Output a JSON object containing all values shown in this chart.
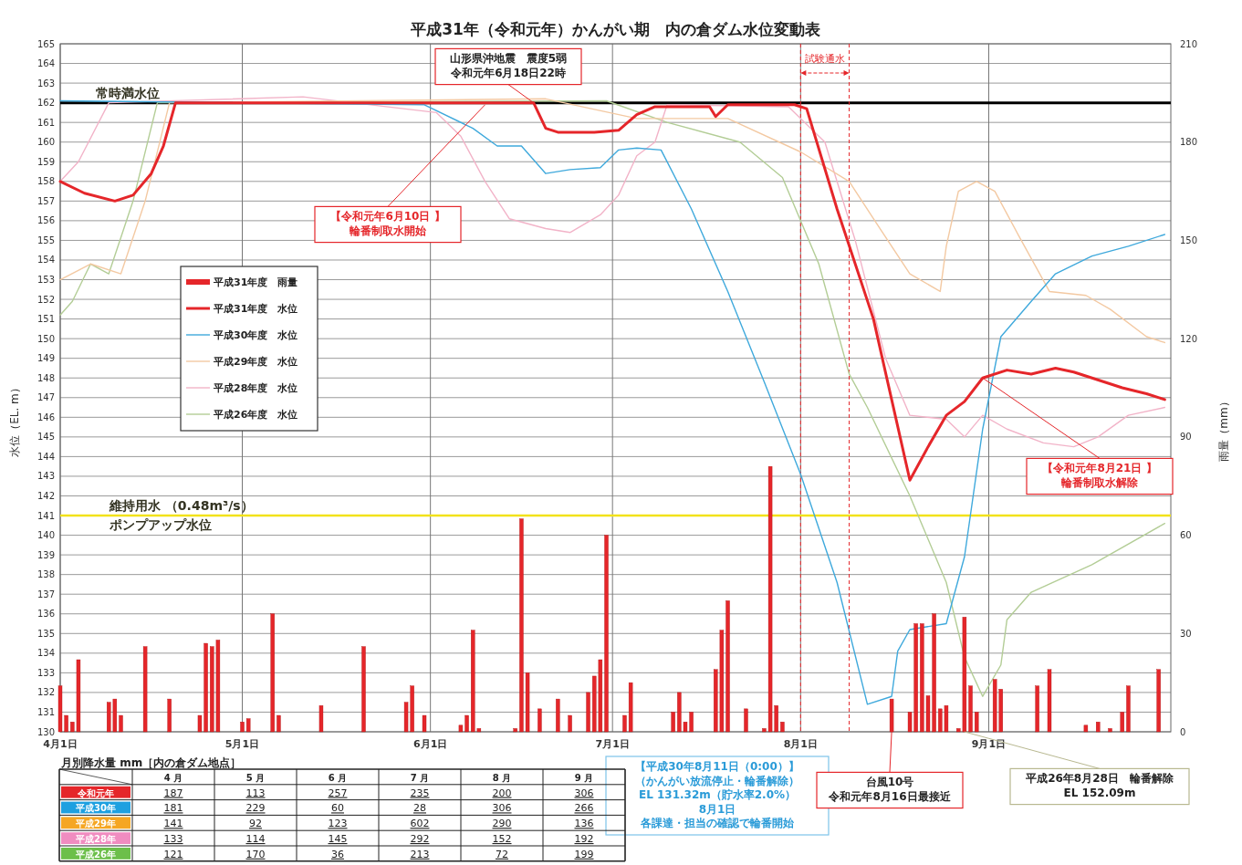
{
  "chart_data": [
    {
      "type": "line",
      "title": "平成31年（令和元年）かんがい期　内の倉ダム水位変動表",
      "ylabel": "水位（EL. m）",
      "y2label": "雨量（mm）",
      "xlim": [
        "--04-01",
        "--10-01"
      ],
      "xticks": [
        {
          "value": "--04-01",
          "label": "4月1日"
        },
        {
          "value": "--05-01",
          "label": "5月1日"
        },
        {
          "value": "--06-01",
          "label": "6月1日"
        },
        {
          "value": "--07-01",
          "label": "7月1日"
        },
        {
          "value": "--08-01",
          "label": "8月1日"
        },
        {
          "value": "--09-01",
          "label": "9月1日"
        }
      ],
      "ylim": [
        130,
        165
      ],
      "yticks": [
        130,
        131,
        132,
        133,
        134,
        135,
        136,
        137,
        138,
        139,
        140,
        141,
        142,
        143,
        144,
        145,
        146,
        147,
        148,
        149,
        150,
        151,
        152,
        153,
        154,
        155,
        156,
        157,
        158,
        159,
        160,
        161,
        162,
        163,
        164,
        165
      ],
      "y2lim": [
        0,
        210
      ],
      "y2ticks": [
        0,
        30,
        60,
        90,
        120,
        150,
        180,
        210
      ],
      "grid": true,
      "legend": "left",
      "series": [
        {
          "name": "平成31年度　雨量",
          "type": "bar",
          "axis": "y2",
          "color": "#e5262a",
          "x": [
            "--04-01",
            "--04-02",
            "--04-03",
            "--04-04",
            "--04-09",
            "--04-10",
            "--04-11",
            "--04-15",
            "--04-19",
            "--04-24",
            "--04-25",
            "--04-26",
            "--04-27",
            "--05-01",
            "--05-02",
            "--05-06",
            "--05-07",
            "--05-14",
            "--05-21",
            "--05-28",
            "--05-29",
            "--05-31",
            "--06-06",
            "--06-07",
            "--06-08",
            "--06-09",
            "--06-15",
            "--06-16",
            "--06-17",
            "--06-19",
            "--06-22",
            "--06-24",
            "--06-27",
            "--06-28",
            "--06-29",
            "--06-30",
            "--07-03",
            "--07-04",
            "--07-11",
            "--07-12",
            "--07-13",
            "--07-14",
            "--07-18",
            "--07-19",
            "--07-20",
            "--07-23",
            "--07-26",
            "--07-27",
            "--07-28",
            "--07-29",
            "--08-16",
            "--08-19",
            "--08-20",
            "--08-21",
            "--08-22",
            "--08-23",
            "--08-24",
            "--08-25",
            "--08-27",
            "--08-28",
            "--08-29",
            "--08-30",
            "--09-02",
            "--09-03",
            "--09-09",
            "--09-11",
            "--09-17",
            "--09-19",
            "--09-21",
            "--09-23",
            "--09-24",
            "--09-29"
          ],
          "values": [
            14,
            5,
            3,
            22,
            9,
            10,
            5,
            26,
            10,
            5,
            27,
            26,
            28,
            3,
            4,
            36,
            5,
            8,
            26,
            9,
            14,
            5,
            2,
            5,
            31,
            1,
            1,
            65,
            18,
            7,
            10,
            5,
            12,
            17,
            22,
            60,
            5,
            15,
            6,
            12,
            3,
            6,
            19,
            31,
            40,
            7,
            1,
            81,
            8,
            3,
            10,
            6,
            33,
            33,
            11,
            36,
            7,
            8,
            1,
            35,
            14,
            6,
            16,
            13,
            14,
            19,
            2,
            3,
            1,
            6,
            14,
            19
          ]
        },
        {
          "name": "平成31年度　水位",
          "type": "line",
          "color": "#e5262a",
          "x": [
            "--04-01",
            "--04-05",
            "--04-10",
            "--04-13",
            "--04-16",
            "--04-18",
            "--04-20",
            "--06-18",
            "--06-20",
            "--06-22",
            "--06-28",
            "--07-02",
            "--07-05",
            "--07-08",
            "--07-17",
            "--07-18",
            "--07-20",
            "--07-31",
            "--08-02",
            "--08-07",
            "--08-13",
            "--08-19",
            "--08-22",
            "--08-25",
            "--08-28",
            "--08-31",
            "--09-04",
            "--09-08",
            "--09-12",
            "--09-15",
            "--09-23",
            "--09-27",
            "--09-30"
          ],
          "values": [
            158.0,
            157.4,
            157.0,
            157.3,
            158.4,
            159.8,
            162.0,
            162.0,
            160.7,
            160.5,
            160.5,
            160.6,
            161.4,
            161.8,
            161.8,
            161.3,
            161.9,
            161.9,
            161.7,
            156.6,
            151.0,
            142.8,
            144.5,
            146.1,
            146.8,
            148.0,
            148.4,
            148.2,
            148.5,
            148.3,
            147.5,
            147.2,
            146.9
          ]
        },
        {
          "name": "平成30年度　水位",
          "type": "line",
          "color": "#3fa9dc",
          "x": [
            "--04-01",
            "--05-31",
            "--06-08",
            "--06-12",
            "--06-16",
            "--06-20",
            "--06-24",
            "--06-29",
            "--07-02",
            "--07-05",
            "--07-09",
            "--07-14",
            "--07-20",
            "--07-26",
            "--08-01",
            "--08-07",
            "--08-12",
            "--08-16",
            "--08-17",
            "--08-19",
            "--08-25",
            "--08-28",
            "--08-31",
            "--09-03",
            "--09-08",
            "--09-12",
            "--09-18",
            "--09-24",
            "--09-30"
          ],
          "values": [
            162.1,
            161.9,
            160.7,
            159.8,
            159.8,
            158.4,
            158.6,
            158.7,
            159.6,
            159.7,
            159.6,
            156.6,
            152.4,
            147.8,
            143.1,
            137.6,
            131.4,
            131.8,
            134.1,
            135.2,
            135.5,
            138.9,
            145.4,
            150.1,
            151.9,
            153.3,
            154.2,
            154.7,
            155.3
          ]
        },
        {
          "name": "平成29年度　水位",
          "type": "line",
          "color": "#f3c9a2",
          "x": [
            "--04-01",
            "--04-06",
            "--04-11",
            "--04-15",
            "--04-19",
            "--06-20",
            "--07-05",
            "--07-20",
            "--08-01",
            "--08-09",
            "--08-13",
            "--08-19",
            "--08-24",
            "--08-25",
            "--08-27",
            "--08-30",
            "--09-02",
            "--09-06",
            "--09-11",
            "--09-17",
            "--09-21",
            "--09-27",
            "--09-30"
          ],
          "values": [
            153.0,
            153.8,
            153.3,
            157.0,
            162.0,
            162.2,
            161.2,
            161.2,
            159.5,
            158.0,
            156.1,
            153.3,
            152.4,
            154.7,
            157.5,
            158.0,
            157.5,
            155.2,
            152.4,
            152.2,
            151.5,
            150.1,
            149.8
          ]
        },
        {
          "name": "平成28年度　水位",
          "type": "line",
          "color": "#f2b3c8",
          "x": [
            "--04-01",
            "--04-04",
            "--04-09",
            "--05-11",
            "--06-02",
            "--06-06",
            "--06-10",
            "--06-14",
            "--06-20",
            "--06-24",
            "--06-29",
            "--07-02",
            "--07-05",
            "--07-08",
            "--07-10",
            "--07-30",
            "--08-05",
            "--08-10",
            "--08-15",
            "--08-19",
            "--08-25",
            "--08-28",
            "--08-31",
            "--09-04",
            "--09-10",
            "--09-15",
            "--09-19",
            "--09-24",
            "--09-30"
          ],
          "values": [
            158.0,
            159.0,
            162.0,
            162.3,
            161.5,
            160.3,
            158.0,
            156.1,
            155.6,
            155.4,
            156.3,
            157.3,
            159.3,
            160.0,
            161.9,
            161.8,
            160.0,
            155.0,
            149.0,
            146.1,
            145.9,
            145.0,
            146.1,
            145.4,
            144.7,
            144.5,
            145.0,
            146.1,
            146.5
          ]
        },
        {
          "name": "平成26年度　水位",
          "type": "line",
          "color": "#b3cd96",
          "x": [
            "--04-01",
            "--04-03",
            "--04-06",
            "--04-09",
            "--04-13",
            "--04-17",
            "--06-30",
            "--07-10",
            "--07-22",
            "--07-29",
            "--08-04",
            "--08-09",
            "--08-12",
            "--08-19",
            "--08-25",
            "--08-28",
            "--08-31",
            "--09-03",
            "--09-04",
            "--09-08",
            "--09-18",
            "--09-30"
          ],
          "values": [
            151.2,
            151.9,
            153.8,
            153.3,
            157.0,
            162.0,
            162.1,
            161.0,
            160.0,
            158.2,
            153.8,
            148.2,
            146.5,
            142.0,
            137.6,
            133.8,
            131.8,
            133.4,
            135.7,
            137.1,
            138.5,
            140.6
          ]
        }
      ],
      "ref_lines": [
        {
          "axis": "y",
          "value": 162,
          "label": "常時満水位",
          "color": "#000000"
        },
        {
          "axis": "y",
          "value": 141,
          "label": "維持用水 （0.48m³/s）ポンプアップ水位",
          "color": "#f2e21a"
        },
        {
          "axis": "x",
          "value": "--08-01",
          "label": "試験通水",
          "color": "#e5262a",
          "line_style": "dashed"
        },
        {
          "axis": "x",
          "value": "--08-09",
          "color": "#e5262a",
          "line_style": "dashed"
        }
      ],
      "annotations": [
        {
          "text": "山形県沖地震　震度5弱令和元年6月18日22時",
          "x": "--06-18",
          "y": 162.0
        },
        {
          "text": "【令和元年6月10日 】輪番制取水開始",
          "x": "--06-10",
          "y": 161.9
        },
        {
          "text": "【令和元年8月21日 】輪番制取水解除",
          "x": "--08-31",
          "y": 148.0
        },
        "【平成30年8月11日（0:00）】（かんがい放流停止・輪番解除）EL 131.32m（貯水率2.0%）8月1日各課達・担当の確認で輪番開始",
        {
          "text": "台風10号令和元年8月16日最接近",
          "x": "--08-16",
          "y": 130
        },
        {
          "text": "平成26年8月28日　輪番解除EL 152.09m",
          "x": "--08-28",
          "y": 130
        }
      ]
    },
    {
      "type": "heatmap",
      "title": "月別降水量 mm［内の倉ダム地点］",
      "categories": [
        "4 月",
        "5 月",
        "6 月",
        "7 月",
        "8 月",
        "9 月"
      ],
      "y_categories": [
        "令和元年",
        "平成30年",
        "平成29年",
        "平成28年",
        "平成26年"
      ],
      "colors": [
        "#e5262a",
        "#1ea0e0",
        "#f5a623",
        "#f08cc0",
        "#6cbf4a"
      ],
      "cells": [
        [
          187,
          113,
          257,
          235,
          200,
          306
        ],
        [
          181,
          229,
          60,
          28,
          306,
          266
        ],
        [
          141,
          92,
          123,
          602,
          290,
          136
        ],
        [
          133,
          114,
          145,
          292,
          152,
          192
        ],
        [
          121,
          170,
          36,
          213,
          72,
          199
        ]
      ],
      "data_labels": true
    }
  ]
}
